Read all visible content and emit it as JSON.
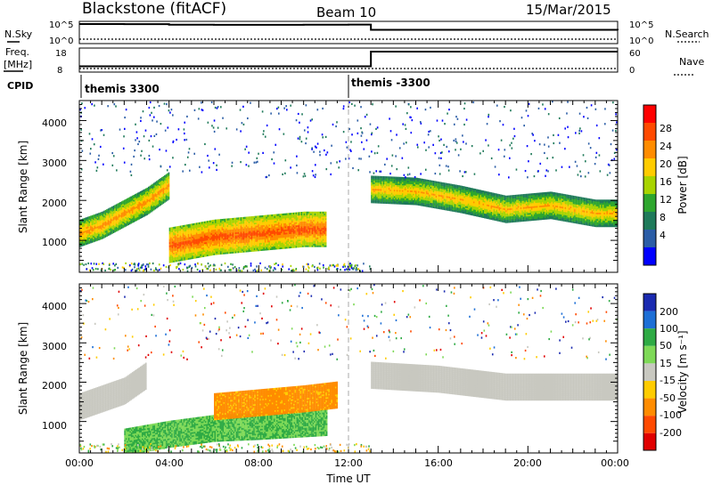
{
  "header": {
    "station": "Blackstone (fitACF)",
    "beam": "Beam 10",
    "date": "15/Mar/2015"
  },
  "summary_panels": {
    "nsky_label": "N.Sky",
    "nsky_ticks": [
      "10^5",
      "10^0"
    ],
    "nsearch_label": "N.Search",
    "nsearch_ticks": [
      "10^5",
      "10^0"
    ],
    "freq_label": "Freq.",
    "freq_unit": "[MHz]",
    "freq_ticks": [
      "18",
      "8"
    ],
    "nave_label": "Nave",
    "nave_ticks": [
      "60",
      "0"
    ],
    "cpid_label": "CPID",
    "cpid_entries": [
      {
        "text": "themis 3300",
        "start_hour": 0
      },
      {
        "text": "themis -3300",
        "start_hour": 12
      }
    ]
  },
  "x_axis": {
    "title": "Time UT",
    "ticks": [
      "00:00",
      "04:00",
      "08:00",
      "12:00",
      "16:00",
      "20:00",
      "00:00"
    ],
    "range_hours": [
      0,
      24
    ]
  },
  "y_axis": {
    "title": "Slant Range [km]",
    "ticks": [
      "1000",
      "2000",
      "3000",
      "4000"
    ],
    "range_km": [
      200,
      4500
    ]
  },
  "colorbars": {
    "power": {
      "title": "Power [dB]",
      "labels": [
        "28",
        "24",
        "20",
        "16",
        "12",
        "8",
        "4"
      ],
      "colors": [
        "#ff0000",
        "#ff4a00",
        "#ff8c00",
        "#ffcc00",
        "#a8d400",
        "#2ea62e",
        "#1f7a5a",
        "#2b5da6",
        "#0000ff"
      ]
    },
    "velocity": {
      "title": "Velocity [m s⁻¹]",
      "labels": [
        "200",
        "100",
        "50",
        "15",
        "-15",
        "-50",
        "-100",
        "-200"
      ],
      "colors": [
        "#1a2ab0",
        "#1d6fd6",
        "#2eaa44",
        "#7ed957",
        "#c8c8c0",
        "#ffcc00",
        "#ff8c00",
        "#ff4a00",
        "#e00000"
      ]
    }
  },
  "chart_data": [
    {
      "type": "line",
      "title": "N.Sky / N.Search",
      "x": [
        0,
        2,
        4,
        6,
        8,
        10,
        12,
        13,
        14,
        16,
        18,
        20,
        22,
        24
      ],
      "series": [
        {
          "name": "N.Sky",
          "values": [
            60000,
            55000,
            40000,
            38000,
            38000,
            40000,
            42000,
            2000,
            2000,
            2000,
            2000,
            2000,
            2000,
            1500
          ]
        },
        {
          "name": "N.Search",
          "values": [
            4,
            3,
            3,
            3,
            3,
            3,
            3,
            2,
            2,
            2,
            2,
            2,
            2,
            2
          ]
        }
      ]
    },
    {
      "type": "line",
      "title": "Freq. / Nave",
      "x": [
        0,
        6,
        12.9,
        13,
        18,
        24
      ],
      "series": [
        {
          "name": "Freq. [MHz]",
          "values": [
            10.5,
            10.5,
            10.5,
            18,
            18,
            18
          ]
        },
        {
          "name": "Nave",
          "values": [
            15,
            15,
            15,
            15,
            15,
            15
          ]
        }
      ]
    },
    {
      "type": "heatmap",
      "title": "Power [dB]",
      "xlabel": "Time UT",
      "ylabel": "Slant Range [km]",
      "xlim": [
        0,
        24
      ],
      "ylim": [
        200,
        4500
      ],
      "features": [
        {
          "name": "morning band",
          "x": [
            0,
            1,
            2,
            3,
            4
          ],
          "range_km": [
            1200,
            1400,
            1700,
            2000,
            2400
          ],
          "power_db": 24
        },
        {
          "name": "main patch",
          "x": [
            4,
            6,
            8,
            10,
            11
          ],
          "range_km": [
            900,
            1100,
            1200,
            1300,
            1300
          ],
          "power_db": 28
        },
        {
          "name": "evening band",
          "x": [
            13,
            15,
            17,
            19,
            21,
            23,
            24
          ],
          "range_km": [
            2300,
            2250,
            2050,
            1800,
            1900,
            1700,
            1700
          ],
          "power_db": 22
        }
      ]
    },
    {
      "type": "heatmap",
      "title": "Velocity [m s^-1]",
      "xlabel": "Time UT",
      "ylabel": "Slant Range [km]",
      "xlim": [
        0,
        24
      ],
      "ylim": [
        200,
        4500
      ],
      "features": [
        {
          "name": "early scatter",
          "x": [
            0,
            1,
            2,
            3
          ],
          "range_km": [
            1400,
            1600,
            1800,
            2200
          ],
          "velocity": 0
        },
        {
          "name": "low-velocity band",
          "x": [
            2,
            4,
            6,
            8,
            11
          ],
          "range_km": [
            500,
            700,
            850,
            900,
            1000
          ],
          "velocity": 30
        },
        {
          "name": "westward flow",
          "x": [
            6,
            8,
            10,
            11.5
          ],
          "range_km": [
            1400,
            1500,
            1600,
            1700
          ],
          "velocity": -60
        },
        {
          "name": "evening ground scatter",
          "x": [
            13,
            16,
            19,
            22,
            24
          ],
          "range_km": [
            2200,
            2100,
            1900,
            1900,
            1900
          ],
          "velocity": 0
        }
      ]
    }
  ]
}
